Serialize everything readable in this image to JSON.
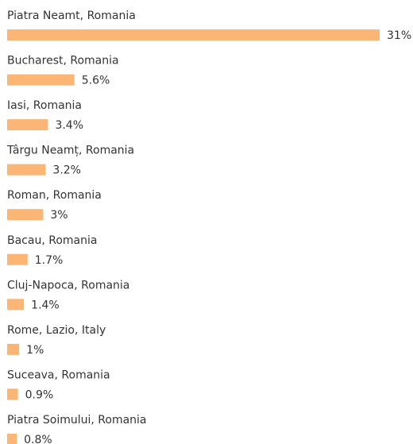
{
  "chart_data": {
    "type": "bar",
    "orientation": "horizontal",
    "categories": [
      "Piatra Neamt, Romania",
      "Bucharest, Romania",
      "Iasi, Romania",
      "Târgu Neamț, Romania",
      "Roman, Romania",
      "Bacau, Romania",
      "Cluj-Napoca, Romania",
      "Rome, Lazio, Italy",
      "Suceava, Romania",
      "Piatra Soimului, Romania"
    ],
    "values": [
      31,
      5.6,
      3.4,
      3.2,
      3,
      1.7,
      1.4,
      1,
      0.9,
      0.8
    ],
    "value_labels": [
      "31%",
      "5.6%",
      "3.4%",
      "3.2%",
      "3%",
      "1.7%",
      "1.4%",
      "1%",
      "0.9%",
      "0.8%"
    ],
    "color": "#fbb574"
  }
}
